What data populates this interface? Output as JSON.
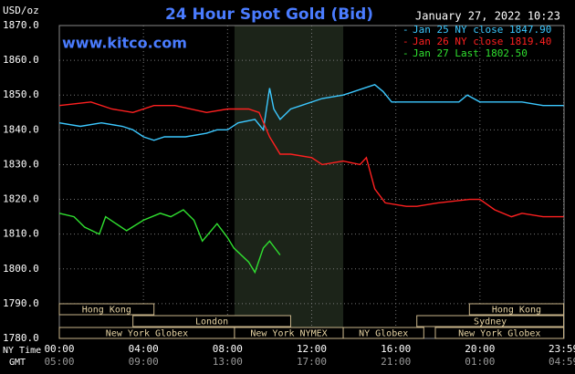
{
  "chart_data": {
    "type": "line",
    "title": "24 Hour Spot Gold (Bid)",
    "y_unit": "USD/oz",
    "timestamp": "January 27, 2022 10:23",
    "watermark": "www.kitco.com",
    "xlim": [
      0,
      24
    ],
    "ylim": [
      1780,
      1870
    ],
    "yticks": [
      {
        "value": 1780,
        "label": "1780.0"
      },
      {
        "value": 1790,
        "label": "1790.0"
      },
      {
        "value": 1800,
        "label": "1800.0"
      },
      {
        "value": 1810,
        "label": "1810.0"
      },
      {
        "value": 1820,
        "label": "1820.0"
      },
      {
        "value": 1830,
        "label": "1830.0"
      },
      {
        "value": 1840,
        "label": "1840.0"
      },
      {
        "value": 1850,
        "label": "1850.0"
      },
      {
        "value": 1860,
        "label": "1860.0"
      },
      {
        "value": 1870,
        "label": "1870.0"
      }
    ],
    "xticks": [
      {
        "value": 0,
        "label": "00:00"
      },
      {
        "value": 4,
        "label": "04:00"
      },
      {
        "value": 8,
        "label": "08:00"
      },
      {
        "value": 12,
        "label": "12:00"
      },
      {
        "value": 16,
        "label": "16:00"
      },
      {
        "value": 20,
        "label": "20:00"
      },
      {
        "value": 23.98,
        "label": "23:59"
      }
    ],
    "x2_ticks": [
      "05:00",
      "09:00",
      "13:00",
      "17:00",
      "21:00",
      "01:00",
      "04:59"
    ],
    "x_label": "NY Time",
    "x2_label": "GMT",
    "grid": true,
    "shaded_range": [
      8.33,
      13.5
    ],
    "sessions": [
      {
        "label": "Hong Kong",
        "row": 0,
        "start": 0,
        "end": 4.5
      },
      {
        "label": "Hong Kong",
        "row": 0,
        "start": 19.5,
        "end": 23.98
      },
      {
        "label": "London",
        "row": 1,
        "start": 3.5,
        "end": 11
      },
      {
        "label": "Sydney",
        "row": 1,
        "start": 17,
        "end": 23.98
      },
      {
        "label": "New York Globex",
        "row": 2,
        "start": 0,
        "end": 8.33
      },
      {
        "label": "New York NYMEX",
        "row": 2,
        "start": 8.33,
        "end": 13.5
      },
      {
        "label": "NY Globex",
        "row": 2,
        "start": 13.5,
        "end": 17.33
      },
      {
        "label": "New York Globex",
        "row": 2,
        "start": 17.88,
        "end": 23.98
      }
    ],
    "series": [
      {
        "name": "Jan 25 NY close 1847.90",
        "color": "#3cc8ff",
        "x": [
          0,
          1,
          2,
          3,
          3.5,
          4,
          4.5,
          5,
          6,
          7,
          7.5,
          8,
          8.5,
          9.3,
          9.7,
          10,
          10.2,
          10.5,
          11,
          11.5,
          12.5,
          13.5,
          14.5,
          15,
          15.4,
          15.8,
          17,
          18,
          19,
          19.4,
          20,
          21,
          22,
          23,
          23.98
        ],
        "values": [
          1842,
          1841,
          1842,
          1841,
          1840,
          1838,
          1837,
          1838,
          1838,
          1839,
          1840,
          1840,
          1842,
          1843,
          1840,
          1852,
          1846,
          1843,
          1846,
          1847,
          1849,
          1850,
          1852,
          1853,
          1851,
          1848,
          1848,
          1848,
          1848,
          1850,
          1848,
          1848,
          1848,
          1847,
          1847
        ]
      },
      {
        "name": "Jan 26 NY close 1819.40",
        "color": "#ff2020",
        "x": [
          0,
          1.5,
          2.5,
          3.5,
          4.5,
          5.5,
          7,
          8,
          9,
          9.5,
          10,
          10.5,
          11,
          12,
          12.5,
          13.5,
          14.3,
          14.6,
          15,
          15.5,
          16.5,
          17,
          18,
          19.5,
          20,
          20.7,
          21.5,
          22,
          23,
          23.98
        ],
        "values": [
          1847,
          1848,
          1846,
          1845,
          1847,
          1847,
          1845,
          1846,
          1846,
          1845,
          1838,
          1833,
          1833,
          1832,
          1830,
          1831,
          1830,
          1832,
          1823,
          1819,
          1818,
          1818,
          1819,
          1820,
          1820,
          1817,
          1815,
          1816,
          1815,
          1815
        ]
      },
      {
        "name": "Jan 27 Last 1802.50",
        "color": "#30e030",
        "x": [
          0,
          0.7,
          1.2,
          1.9,
          2.2,
          3.2,
          4,
          4.8,
          5.3,
          5.9,
          6.4,
          6.8,
          7.5,
          8,
          8.3,
          9,
          9.3,
          9.7,
          10,
          10.5
        ],
        "values": [
          1816,
          1815,
          1812,
          1810,
          1815,
          1811,
          1814,
          1816,
          1815,
          1817,
          1814,
          1808,
          1813,
          1809,
          1806,
          1802,
          1799,
          1806,
          1808,
          1804
        ]
      }
    ]
  }
}
